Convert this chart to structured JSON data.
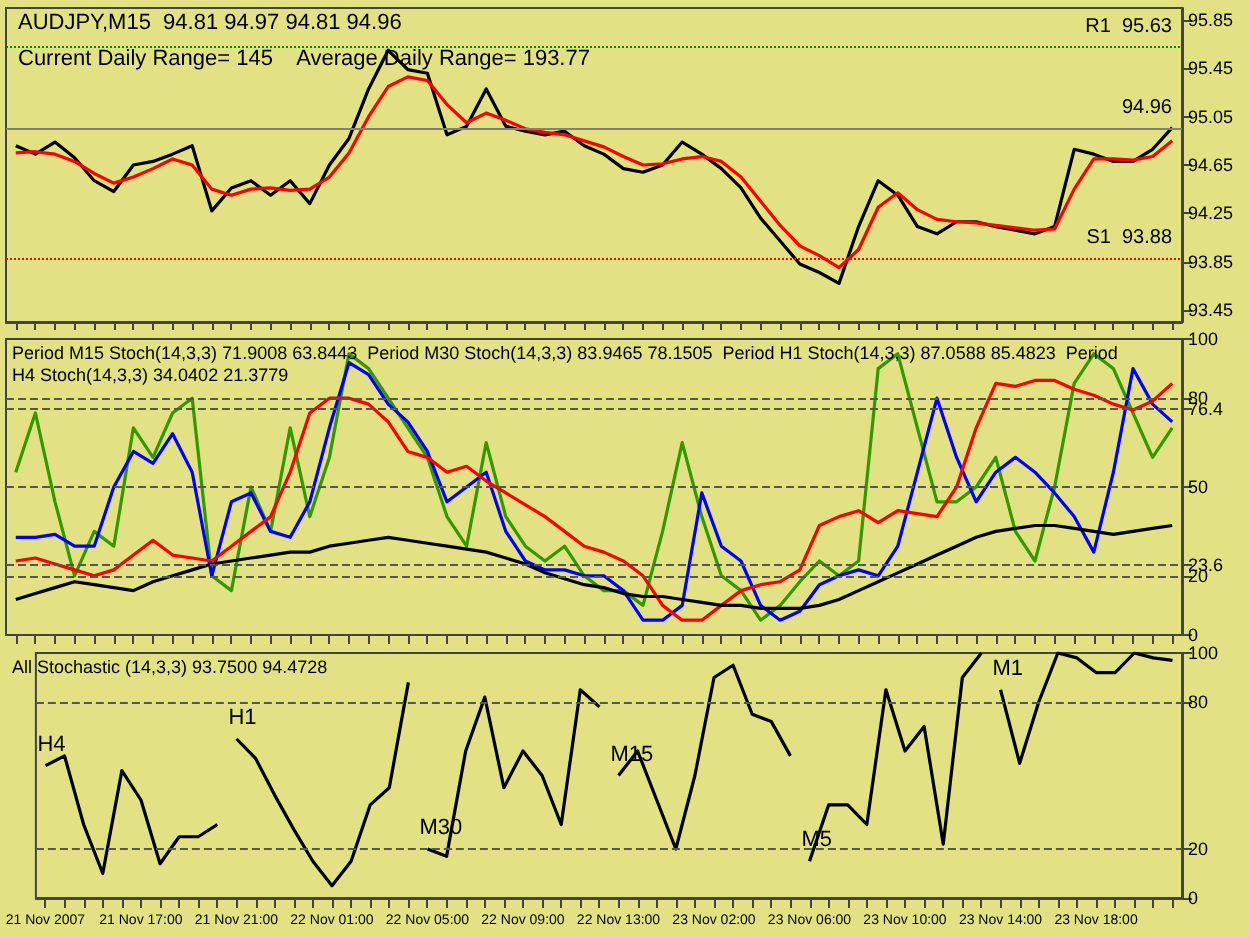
{
  "chart_data": [
    {
      "type": "line",
      "title": "AUDJPY,M15  94.81 94.97 94.81 94.96",
      "subtitle": "Current Daily Range= 145    Average Daily Range= 193.77",
      "tick_labels": "y",
      "categories": [
        null,
        null,
        null,
        null,
        null,
        null,
        null,
        null,
        null,
        null,
        null,
        null,
        null,
        null,
        null,
        null,
        null,
        null,
        null,
        null,
        null,
        null,
        null,
        null,
        null,
        null,
        null,
        null,
        null,
        null,
        null,
        null,
        null,
        null,
        null,
        null,
        null,
        null,
        null,
        null,
        null,
        null,
        null,
        null,
        null,
        null,
        null,
        null,
        null,
        null,
        null,
        null,
        null,
        null,
        null,
        null,
        null,
        null,
        null,
        null
      ],
      "series": [
        {
          "color": "#000000",
          "values": [
            94.81,
            94.74,
            94.84,
            94.71,
            94.52,
            94.43,
            94.65,
            94.68,
            94.74,
            94.81,
            94.27,
            94.46,
            94.52,
            94.4,
            94.52,
            94.33,
            94.65,
            94.87,
            95.28,
            95.6,
            95.44,
            95.41,
            94.9,
            94.97,
            95.28,
            94.97,
            94.93,
            94.9,
            94.93,
            94.81,
            94.74,
            94.62,
            94.59,
            94.65,
            94.84,
            94.74,
            94.62,
            94.46,
            94.21,
            94.02,
            93.83,
            93.76,
            93.67,
            94.14,
            94.52,
            94.4,
            94.14,
            94.08,
            94.18,
            94.18,
            94.14,
            94.11,
            94.08,
            94.14,
            94.78,
            94.74,
            94.68,
            94.68,
            94.78,
            94.96
          ]
        },
        {
          "color": "#ff0000",
          "values": [
            94.75,
            94.76,
            94.74,
            94.68,
            94.58,
            94.5,
            94.55,
            94.62,
            94.7,
            94.65,
            94.45,
            94.4,
            94.45,
            94.46,
            94.44,
            94.45,
            94.55,
            94.75,
            95.05,
            95.3,
            95.38,
            95.35,
            95.15,
            95.0,
            95.08,
            95.02,
            94.95,
            94.92,
            94.9,
            94.85,
            94.8,
            94.72,
            94.65,
            94.66,
            94.7,
            94.72,
            94.68,
            94.55,
            94.35,
            94.15,
            93.98,
            93.9,
            93.8,
            93.95,
            94.3,
            94.42,
            94.28,
            94.2,
            94.18,
            94.17,
            94.15,
            94.13,
            94.11,
            94.12,
            94.45,
            94.7,
            94.7,
            94.69,
            94.72,
            94.85
          ]
        }
      ],
      "ylim": [
        93.35,
        95.95
      ],
      "yticks": [
        93.45,
        93.85,
        94.25,
        94.65,
        95.05,
        95.45,
        95.85
      ],
      "ref_lines": [
        {
          "axis": "y",
          "value": 95.63,
          "label": "R1  95.63",
          "color": "#008800",
          "line_style": "dotted"
        },
        {
          "axis": "y",
          "value": 93.88,
          "label": "S1  93.88",
          "color": "#ff0000",
          "line_style": "dotted"
        },
        {
          "axis": "y",
          "value": 94.96,
          "label": "94.96",
          "color": "#808080",
          "line_style": "solid"
        }
      ]
    },
    {
      "type": "line",
      "annotations": [
        "Period M15 Stoch(14,3,3) 71.9008 63.8443  Period M30 Stoch(14,3,3) 83.9465 78.1505  Period H1 Stoch(14,3,3) 87.0588 85.4823  Period H4 Stoch(14,3,3) 34.0402 21.3779"
      ],
      "tick_labels": "y",
      "categories": [
        null,
        null,
        null,
        null,
        null,
        null,
        null,
        null,
        null,
        null,
        null,
        null,
        null,
        null,
        null,
        null,
        null,
        null,
        null,
        null,
        null,
        null,
        null,
        null,
        null,
        null,
        null,
        null,
        null,
        null,
        null,
        null,
        null,
        null,
        null,
        null,
        null,
        null,
        null,
        null,
        null,
        null,
        null,
        null,
        null,
        null,
        null,
        null,
        null,
        null,
        null,
        null,
        null,
        null,
        null,
        null,
        null,
        null,
        null,
        null
      ],
      "series": [
        {
          "color": "#339900",
          "values": [
            55,
            75,
            45,
            20,
            35,
            30,
            70,
            60,
            75,
            80,
            20,
            15,
            50,
            35,
            70,
            40,
            60,
            95,
            90,
            80,
            70,
            60,
            40,
            30,
            65,
            40,
            30,
            25,
            30,
            20,
            15,
            15,
            10,
            35,
            65,
            40,
            20,
            15,
            5,
            10,
            18,
            25,
            20,
            25,
            90,
            95,
            70,
            45,
            45,
            50,
            60,
            35,
            25,
            50,
            85,
            95,
            90,
            75,
            60,
            70
          ]
        },
        {
          "color": "#0000ff",
          "values": [
            33,
            33,
            34,
            30,
            30,
            50,
            62,
            58,
            68,
            55,
            20,
            45,
            48,
            35,
            33,
            45,
            70,
            92,
            88,
            78,
            72,
            62,
            45,
            50,
            55,
            35,
            25,
            22,
            22,
            20,
            20,
            15,
            5,
            5,
            10,
            48,
            30,
            25,
            10,
            5,
            8,
            17,
            20,
            22,
            20,
            30,
            55,
            80,
            60,
            45,
            55,
            60,
            55,
            48,
            40,
            28,
            55,
            90,
            78,
            72
          ]
        },
        {
          "color": "#ff0000",
          "values": [
            25,
            26,
            24,
            22,
            20,
            22,
            27,
            32,
            27,
            26,
            25,
            30,
            35,
            40,
            55,
            75,
            80,
            80,
            78,
            72,
            62,
            60,
            55,
            57,
            52,
            48,
            44,
            40,
            35,
            30,
            28,
            25,
            20,
            10,
            5,
            5,
            10,
            15,
            17,
            18,
            22,
            37,
            40,
            42,
            38,
            42,
            41,
            40,
            50,
            70,
            85,
            84,
            86,
            86,
            83,
            81,
            78,
            76,
            79,
            85
          ]
        },
        {
          "color": "#000000",
          "values": [
            12,
            14,
            16,
            18,
            17,
            16,
            15,
            18,
            20,
            22,
            24,
            25,
            26,
            27,
            28,
            28,
            30,
            31,
            32,
            33,
            32,
            31,
            30,
            29,
            28,
            26,
            24,
            21,
            19,
            17,
            16,
            14,
            13,
            13,
            12,
            11,
            10,
            10,
            9,
            9,
            9,
            10,
            12,
            15,
            18,
            21,
            24,
            27,
            30,
            33,
            35,
            36,
            37,
            37,
            36,
            35,
            34,
            35,
            36,
            37
          ]
        }
      ],
      "ylim": [
        0,
        100
      ],
      "yticks": [
        0,
        20,
        23.6,
        50,
        76.4,
        80,
        100
      ],
      "ref_lines": [
        {
          "axis": "y",
          "value": 20,
          "color": "#555555",
          "line_style": "dashed"
        },
        {
          "axis": "y",
          "value": 23.6,
          "color": "#555555",
          "line_style": "dashed"
        },
        {
          "axis": "y",
          "value": 50,
          "color": "#555555",
          "line_style": "dashed"
        },
        {
          "axis": "y",
          "value": 76.4,
          "color": "#555555",
          "line_style": "dashed"
        },
        {
          "axis": "y",
          "value": 80,
          "color": "#555555",
          "line_style": "dashed"
        }
      ]
    },
    {
      "type": "line",
      "annotations": [
        "All Stochastic (14,3,3) 93.7500 94.4728"
      ],
      "categories": [
        "21 Nov 2007",
        null,
        null,
        null,
        null,
        "21 Nov 17:00",
        null,
        null,
        null,
        null,
        "21 Nov 21:00",
        null,
        null,
        null,
        null,
        "22 Nov 01:00",
        null,
        null,
        null,
        null,
        "22 Nov 05:00",
        null,
        null,
        null,
        null,
        "22 Nov 09:00",
        null,
        null,
        null,
        null,
        "22 Nov 13:00",
        null,
        null,
        null,
        null,
        "23 Nov 02:00",
        null,
        null,
        null,
        null,
        "23 Nov 06:00",
        null,
        null,
        null,
        null,
        "23 Nov 10:00",
        null,
        null,
        null,
        null,
        "23 Nov 14:00",
        null,
        null,
        null,
        null,
        "23 Nov 18:00",
        null,
        null,
        null,
        null
      ],
      "series": [
        {
          "name": "H4",
          "color": "#000000",
          "values": [
            54,
            58,
            30,
            10,
            52,
            40,
            14,
            25,
            25,
            30,
            null,
            null,
            null,
            null,
            null,
            null,
            null,
            null,
            null,
            null,
            null,
            null,
            null,
            null,
            null,
            null,
            null,
            null,
            null,
            null,
            null,
            null,
            null,
            null,
            null,
            null,
            null,
            null,
            null,
            null,
            null,
            null,
            null,
            null,
            null,
            null,
            null,
            null,
            null,
            null,
            null,
            null,
            null,
            null,
            null,
            null,
            null,
            null,
            null,
            null
          ]
        },
        {
          "name": "H1",
          "color": "#000000",
          "values": [
            null,
            null,
            null,
            null,
            null,
            null,
            null,
            null,
            null,
            null,
            65,
            57,
            42,
            28,
            15,
            5,
            15,
            38,
            45,
            88,
            null,
            null,
            null,
            null,
            null,
            null,
            null,
            null,
            null,
            null,
            null,
            null,
            null,
            null,
            null,
            null,
            null,
            null,
            null,
            null,
            null,
            null,
            null,
            null,
            null,
            null,
            null,
            null,
            null,
            null,
            null,
            null,
            null,
            null,
            null,
            null,
            null,
            null,
            null,
            null
          ]
        },
        {
          "name": "M30",
          "color": "#000000",
          "values": [
            null,
            null,
            null,
            null,
            null,
            null,
            null,
            null,
            null,
            null,
            null,
            null,
            null,
            null,
            null,
            null,
            null,
            null,
            null,
            null,
            20,
            17,
            60,
            82,
            45,
            60,
            50,
            30,
            85,
            78,
            null,
            null,
            null,
            null,
            null,
            null,
            null,
            null,
            null,
            null,
            null,
            null,
            null,
            null,
            null,
            null,
            null,
            null,
            null,
            null,
            null,
            null,
            null,
            null,
            null,
            null,
            null,
            null,
            null,
            null
          ]
        },
        {
          "name": "M15",
          "color": "#000000",
          "values": [
            null,
            null,
            null,
            null,
            null,
            null,
            null,
            null,
            null,
            null,
            null,
            null,
            null,
            null,
            null,
            null,
            null,
            null,
            null,
            null,
            null,
            null,
            null,
            null,
            null,
            null,
            null,
            null,
            null,
            null,
            50,
            60,
            40,
            20,
            50,
            90,
            95,
            75,
            72,
            58,
            null,
            null,
            null,
            null,
            null,
            null,
            null,
            null,
            null,
            null,
            null,
            null,
            null,
            null,
            null,
            null,
            null,
            null,
            null,
            null
          ]
        },
        {
          "name": "M5",
          "color": "#000000",
          "values": [
            null,
            null,
            null,
            null,
            null,
            null,
            null,
            null,
            null,
            null,
            null,
            null,
            null,
            null,
            null,
            null,
            null,
            null,
            null,
            null,
            null,
            null,
            null,
            null,
            null,
            null,
            null,
            null,
            null,
            null,
            null,
            null,
            null,
            null,
            null,
            null,
            null,
            null,
            null,
            null,
            15,
            38,
            38,
            30,
            85,
            60,
            70,
            22,
            90,
            100,
            null,
            null,
            null,
            null,
            null,
            null,
            null,
            null,
            null,
            null
          ]
        },
        {
          "name": "M1",
          "color": "#000000",
          "values": [
            null,
            null,
            null,
            null,
            null,
            null,
            null,
            null,
            null,
            null,
            null,
            null,
            null,
            null,
            null,
            null,
            null,
            null,
            null,
            null,
            null,
            null,
            null,
            null,
            null,
            null,
            null,
            null,
            null,
            null,
            null,
            null,
            null,
            null,
            null,
            null,
            null,
            null,
            null,
            null,
            null,
            null,
            null,
            null,
            null,
            null,
            null,
            null,
            null,
            null,
            85,
            55,
            80,
            100,
            98,
            92,
            92,
            100,
            98,
            97
          ]
        }
      ],
      "ylim": [
        0,
        100
      ],
      "yticks": [
        0,
        20,
        80,
        100
      ],
      "ref_lines": [
        {
          "axis": "y",
          "value": 20,
          "color": "#555555",
          "line_style": "dashed"
        },
        {
          "axis": "y",
          "value": 80,
          "color": "#555555",
          "line_style": "dashed"
        }
      ]
    }
  ]
}
